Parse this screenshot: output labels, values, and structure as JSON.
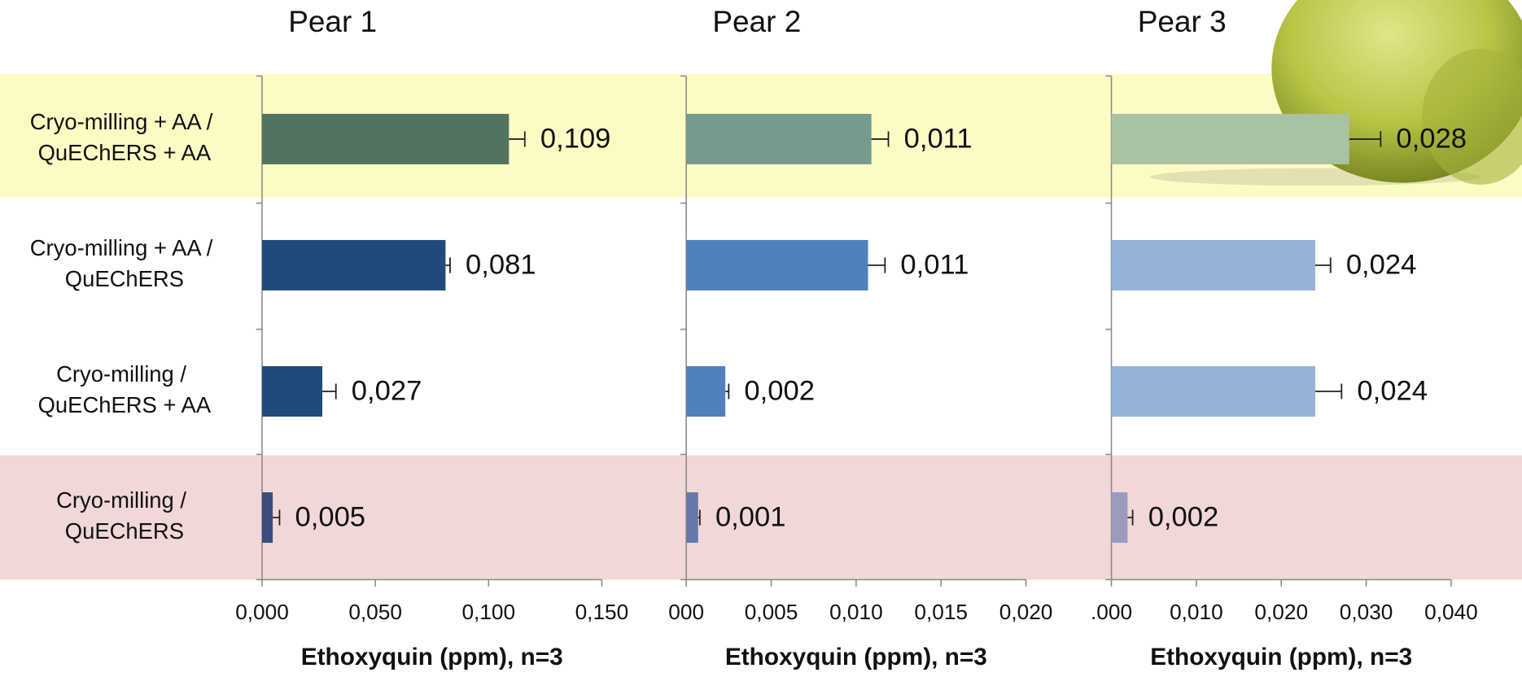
{
  "chart_data": [
    {
      "type": "bar",
      "orientation": "horizontal",
      "title": "Pear 1",
      "categories": [
        "Cryo-milling + AA / QuEChERS + AA",
        "Cryo-milling + AA / QuEChERS",
        "Cryo-milling / QuEChERS + AA",
        "Cryo-milling / QuEChERS"
      ],
      "values": [
        0.109,
        0.081,
        0.0266,
        0.0047
      ],
      "errors": [
        0.007,
        0.002,
        0.006,
        0.003
      ],
      "value_labels": [
        "0,109",
        "0,081",
        "0,027",
        "0,005"
      ],
      "colors": [
        "#52735f",
        "#214a7c",
        "#214a7c",
        "#3b4d7c"
      ],
      "xlim": [
        0,
        0.15
      ],
      "xticks": [
        {
          "value": 0,
          "label": "0,000"
        },
        {
          "value": 0.05,
          "label": "0,050"
        },
        {
          "value": 0.1,
          "label": "0,100"
        },
        {
          "value": 0.15,
          "label": "0,150"
        }
      ],
      "xlabel": "Ethoxyquin (ppm), n=3"
    },
    {
      "type": "bar",
      "orientation": "horizontal",
      "title": "Pear 2",
      "values": [
        0.0109,
        0.0107,
        0.0023,
        0.0007
      ],
      "errors": [
        0.001,
        0.001,
        0.0002,
        0.0001
      ],
      "value_labels": [
        "0,011",
        "0,011",
        "0,002",
        "0,001"
      ],
      "colors": [
        "#769a8e",
        "#4f81bd",
        "#4f81bd",
        "#6677aa"
      ],
      "xlim": [
        0,
        0.02
      ],
      "xticks": [
        {
          "value": 0,
          "label": "000"
        },
        {
          "value": 0.005,
          "label": "0,005"
        },
        {
          "value": 0.01,
          "label": "0,010"
        },
        {
          "value": 0.015,
          "label": "0,015"
        },
        {
          "value": 0.02,
          "label": "0,020"
        }
      ],
      "xlabel": "Ethoxyquin (ppm), n=3"
    },
    {
      "type": "bar",
      "orientation": "horizontal",
      "title": "Pear 3",
      "values": [
        0.028,
        0.024,
        0.024,
        0.0019
      ],
      "errors": [
        0.0037,
        0.0018,
        0.0031,
        0.0006
      ],
      "value_labels": [
        "0,028",
        "0,024",
        "0,024",
        "0,002"
      ],
      "colors": [
        "#a9c2a3",
        "#95b3d7",
        "#95b3d7",
        "#9b9bbf"
      ],
      "xlim": [
        0,
        0.04
      ],
      "xticks": [
        {
          "value": 0,
          "label": ".000"
        },
        {
          "value": 0.01,
          "label": "0,010"
        },
        {
          "value": 0.02,
          "label": "0,020"
        },
        {
          "value": 0.03,
          "label": "0,030"
        },
        {
          "value": 0.04,
          "label": "0,040"
        }
      ],
      "xlabel": "Ethoxyquin (ppm), n=3"
    }
  ]
}
